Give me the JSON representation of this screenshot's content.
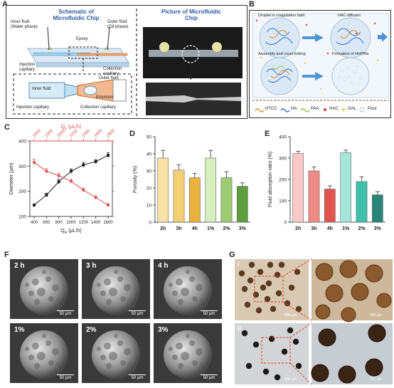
{
  "panels": {
    "A": "A",
    "B": "B",
    "C": "C",
    "D": "D",
    "E": "E",
    "F": "F",
    "G": "G"
  },
  "panelA": {
    "schematic_title": "Schematic of Microfluidic Chip",
    "picture_title": "Picture of Microfluidic Chip",
    "inner_fluid": "Inner fluid",
    "water_phase": "(Water phase)",
    "outer_fluid": "Outer fluid",
    "oil_phase": "(Oil phase)",
    "epoxy": "Epoxy",
    "injection_capillary": "Injection capillary",
    "collection_capillary": "Collection capillary",
    "zoom_inner_fluid": "Inner fluid",
    "zoom_outer_fluid": "Outer fluid",
    "zoom_emulsion": "Emulsion",
    "zoom_injection": "Injection capillary",
    "zoom_collection": "Collection capillary"
  },
  "panelB": {
    "step1": "Droplet in coagulation bath",
    "step2": "HAC diffuses",
    "step3": "Assembly and cross-linking",
    "step4": "Formation of HHPMs",
    "legend": [
      {
        "label": "HTCC",
        "color": "#e08a1e"
      },
      {
        "label": "HA",
        "color": "#2f6fd6"
      },
      {
        "label": "PAA",
        "color": "#8bc34a"
      },
      {
        "label": "HAC",
        "color": "#e53935"
      },
      {
        "label": "GAL",
        "color": "#f2c94c"
      },
      {
        "label": "Pore",
        "color": "#9ec9e6"
      }
    ]
  },
  "chart_data": [
    {
      "type": "line",
      "ylabel": "Diameter (μm)",
      "xlabel_bottom": "Q",
      "xlabel_bottom_sub": "w",
      "xlabel_bottom_unit": " (μL/h)",
      "xlabel_top": "Q",
      "xlabel_top_sub": "o",
      "xlabel_top_unit": " (μL/h)",
      "x_bottom_ticks": [
        400,
        600,
        800,
        1000,
        1200,
        1400,
        1600
      ],
      "x_top_ticks": [
        1600,
        1800,
        2000,
        2200,
        2400,
        2600,
        2800
      ],
      "ylim": [
        100,
        400
      ],
      "yticks": [
        100,
        200,
        300,
        400
      ],
      "series": [
        {
          "color": "#222222",
          "x": [
            400,
            600,
            800,
            1000,
            1200,
            1400,
            1600
          ],
          "y": [
            145,
            185,
            238,
            280,
            305,
            318,
            343
          ],
          "err": [
            5,
            7,
            10,
            9,
            10,
            8,
            10
          ]
        },
        {
          "color": "#d9534f",
          "x": [
            400,
            600,
            800,
            1000,
            1200,
            1400,
            1600
          ],
          "y": [
            315,
            280,
            262,
            240,
            205,
            175,
            145
          ],
          "err": [
            12,
            10,
            9,
            8,
            8,
            7,
            6
          ]
        }
      ]
    },
    {
      "type": "bar",
      "ylabel": "Porosity (%)",
      "categories": [
        "2h",
        "3h",
        "4h",
        "1%",
        "2%",
        "3%"
      ],
      "values": [
        37.5,
        30.5,
        26,
        37.5,
        26,
        21
      ],
      "errors": [
        4.5,
        3,
        2.5,
        4.5,
        3.5,
        2
      ],
      "colors": [
        "#f6e2a6",
        "#f2cf74",
        "#e9b23e",
        "#d6edbe",
        "#9ccb72",
        "#5f9e3e"
      ],
      "ylim": [
        0,
        50
      ],
      "yticks": [
        0,
        10,
        20,
        30,
        40,
        50
      ]
    },
    {
      "type": "bar",
      "ylabel": "Fluid absorption ratio (%)",
      "categories": [
        "2h",
        "3h",
        "4h",
        "1%",
        "2%",
        "3%"
      ],
      "values": [
        322,
        240,
        155,
        325,
        190,
        128
      ],
      "errors": [
        10,
        18,
        15,
        12,
        22,
        15
      ],
      "colors": [
        "#f9c9c9",
        "#f08a87",
        "#e3544e",
        "#a6e6d9",
        "#3fc0aa",
        "#2a8577"
      ],
      "ylim": [
        0,
        400
      ],
      "yticks": [
        0,
        100,
        200,
        300,
        400
      ]
    }
  ],
  "panelF": {
    "images": [
      {
        "label": "2 h",
        "scale": "50 μm"
      },
      {
        "label": "3 h",
        "scale": "50 μm"
      },
      {
        "label": "4 h",
        "scale": "50 μm"
      },
      {
        "label": "1%",
        "scale": "50 μm"
      },
      {
        "label": "2%",
        "scale": "50 μm"
      },
      {
        "label": "3%",
        "scale": "50 μm"
      }
    ]
  },
  "panelG": {
    "row1": "i",
    "row2": "ii",
    "scale": "500 μm",
    "scale_zoom": "100 μm"
  }
}
